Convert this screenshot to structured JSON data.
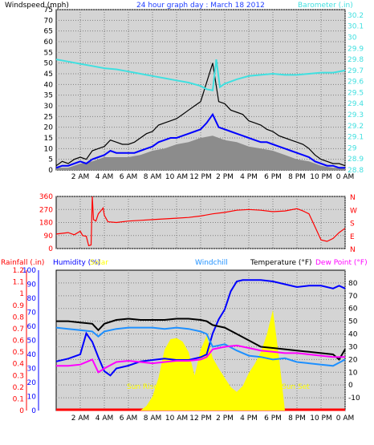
{
  "colors": {
    "background": "#ffffff",
    "plot_background": "#d4d4d4",
    "grid": "#808080",
    "windspeed_max": "#000000",
    "windspeed_range": "#8c8c8c",
    "windspeed_avg": "#0000ff",
    "barometer": "#40e0e0",
    "wind_direction": "#ff0000",
    "rainfall": "#ff0000",
    "humidity": "#0000ff",
    "solar": "#ffff00",
    "windchill": "#1e90ff",
    "temperature": "#000000",
    "dewpoint": "#ff00ff"
  },
  "chart_data": [
    {
      "type": "line",
      "title": "24 hour graph day : March 18 2012",
      "left_label": "Windspeed (mph)",
      "right_label": "Barometer (.in)",
      "x_ticks": [
        "2 AM",
        "4 AM",
        "6 AM",
        "8 AM",
        "10 AM",
        "12 PM",
        "2 PM",
        "4 PM",
        "6 PM",
        "8 PM",
        "10 PM",
        "0 AM"
      ],
      "x_range_hours": [
        0,
        24
      ],
      "y_left_ticks": [
        "0",
        "5",
        "10",
        "15",
        "20",
        "25",
        "30",
        "35",
        "40",
        "45",
        "50",
        "55",
        "60",
        "65",
        "70",
        "75"
      ],
      "y_left_range": [
        0,
        75
      ],
      "y_right_ticks": [
        "28.8",
        "28.9",
        "29",
        "29.1",
        "29.2",
        "29.3",
        "29.4",
        "29.5",
        "29.6",
        "29.7",
        "29.8",
        "29.9",
        "30",
        "30.1",
        "30.2"
      ],
      "y_right_range": [
        28.8,
        30.25
      ],
      "grid": true,
      "series": [
        {
          "key": "wind_max",
          "axis": "left",
          "x": [
            0,
            0.5,
            1,
            1.5,
            2,
            2.5,
            3,
            3.5,
            4,
            4.5,
            5,
            5.5,
            6,
            6.5,
            7,
            7.5,
            8,
            8.5,
            9,
            9.5,
            10,
            10.5,
            11,
            11.5,
            12,
            12.5,
            13,
            13.5,
            14,
            14.5,
            15,
            15.5,
            16,
            16.5,
            17,
            17.5,
            18,
            18.5,
            19,
            19.5,
            20,
            20.5,
            21,
            21.5,
            22,
            22.5,
            23,
            23.5,
            24
          ],
          "values": [
            2,
            4,
            3,
            5,
            6,
            5,
            9,
            10,
            11,
            14,
            13,
            12,
            12,
            13,
            15,
            17,
            18,
            21,
            22,
            23,
            24,
            26,
            28,
            30,
            32,
            41,
            50,
            32,
            31,
            28,
            27,
            26,
            23,
            22,
            21,
            19,
            18,
            16,
            15,
            14,
            13,
            12,
            10,
            7,
            5,
            4,
            3,
            3,
            2
          ]
        },
        {
          "key": "wind_range",
          "axis": "left",
          "x": [
            0,
            1,
            2,
            3,
            4,
            5,
            6,
            7,
            8,
            9,
            10,
            11,
            12,
            13,
            14,
            15,
            16,
            17,
            18,
            19,
            20,
            21,
            22,
            23,
            24
          ],
          "values": [
            1,
            1,
            3,
            4,
            6,
            6,
            6,
            7,
            9,
            10,
            12,
            13,
            15,
            16,
            14,
            13,
            11,
            10,
            9,
            7,
            5,
            4,
            2,
            1,
            1
          ]
        },
        {
          "key": "wind_avg",
          "axis": "left",
          "x": [
            0,
            0.5,
            1,
            1.5,
            2,
            2.5,
            3,
            3.5,
            4,
            4.5,
            5,
            5.5,
            6,
            6.5,
            7,
            7.5,
            8,
            8.5,
            9,
            9.5,
            10,
            10.5,
            11,
            11.5,
            12,
            12.5,
            13,
            13.5,
            14,
            14.5,
            15,
            15.5,
            16,
            16.5,
            17,
            17.5,
            18,
            18.5,
            19,
            19.5,
            20,
            20.5,
            21,
            21.5,
            22,
            22.5,
            23,
            23.5,
            24
          ],
          "values": [
            1,
            2,
            2,
            3,
            4,
            3,
            5,
            6,
            7,
            9,
            8,
            8,
            8,
            8,
            9,
            10,
            11,
            13,
            14,
            15,
            15,
            16,
            17,
            18,
            19,
            22,
            26,
            20,
            19,
            18,
            17,
            16,
            15,
            14,
            13,
            13,
            12,
            11,
            10,
            9,
            8,
            7,
            6,
            4,
            3,
            2,
            2,
            1,
            1
          ]
        },
        {
          "key": "barometer",
          "axis": "right",
          "x": [
            0,
            1,
            2,
            3,
            4,
            5,
            6,
            7,
            8,
            9,
            10,
            11,
            12,
            12.5,
            13,
            13.3,
            13.6,
            14,
            15,
            16,
            17,
            18,
            19,
            20,
            21,
            22,
            23,
            24
          ],
          "values": [
            29.8,
            29.78,
            29.76,
            29.74,
            29.72,
            29.71,
            29.69,
            29.67,
            29.65,
            29.63,
            29.61,
            29.59,
            29.56,
            29.53,
            29.52,
            29.8,
            29.55,
            29.58,
            29.62,
            29.65,
            29.66,
            29.67,
            29.66,
            29.66,
            29.67,
            29.68,
            29.68,
            29.7
          ]
        }
      ]
    },
    {
      "type": "line",
      "y_ticks": [
        "0",
        "90",
        "180",
        "270",
        "360"
      ],
      "y_range": [
        0,
        360
      ],
      "right_ticks": [
        "N",
        "W",
        "S",
        "E",
        "N"
      ],
      "x_range_hours": [
        0,
        24
      ],
      "grid": true,
      "series": [
        {
          "key": "wind_direction",
          "x": [
            0,
            0.5,
            1,
            1.5,
            2,
            2.2,
            2.5,
            2.7,
            2.9,
            3,
            3.1,
            3.3,
            3.5,
            3.7,
            3.9,
            4,
            4.3,
            5,
            6,
            7,
            8,
            9,
            10,
            11,
            12,
            13,
            14,
            15,
            16,
            17,
            18,
            19,
            20,
            20.5,
            21,
            21.5,
            22,
            22.5,
            23,
            23.5,
            24
          ],
          "values": [
            100,
            105,
            110,
            95,
            120,
            90,
            85,
            20,
            25,
            360,
            200,
            190,
            240,
            260,
            280,
            230,
            185,
            180,
            190,
            195,
            200,
            205,
            210,
            215,
            225,
            240,
            250,
            265,
            270,
            265,
            255,
            260,
            275,
            260,
            240,
            150,
            60,
            50,
            70,
            110,
            140
          ]
        }
      ]
    },
    {
      "type": "line",
      "left_label": "Rainfall (.in)",
      "humidity_label": "Humidity (%)",
      "solar_label": "Solar",
      "windchill_label": "Windchill",
      "temperature_label": "Temperature (°F)",
      "dewpoint_label": "Dew Point (°F)",
      "rain_ticks": [
        "0",
        "0.1",
        "0.2",
        "0.3",
        "0.4",
        "0.5",
        "0.6",
        "0.7",
        "0.8",
        "0.9",
        "1",
        "1.1",
        "1.2"
      ],
      "rain_range": [
        0,
        1.2
      ],
      "humidity_ticks": [
        "0",
        "10",
        "20",
        "30",
        "40",
        "50",
        "60",
        "70",
        "80",
        "90",
        "100"
      ],
      "humidity_range": [
        0,
        100
      ],
      "temp_ticks": [
        "-10",
        "0",
        "10",
        "20",
        "30",
        "40",
        "50",
        "60",
        "70",
        "80"
      ],
      "temp_range": [
        -20,
        90
      ],
      "x_ticks": [
        "2 AM",
        "4 AM",
        "6 AM",
        "8 AM",
        "10 AM",
        "12 PM",
        "2 PM",
        "4 PM",
        "6 PM",
        "8 PM",
        "10 PM",
        "0 AM"
      ],
      "x_range_hours": [
        0,
        24
      ],
      "annotations": [
        "Sun Rise",
        "Sun Set"
      ],
      "grid": true,
      "series": [
        {
          "key": "rainfall",
          "x": [
            0,
            24
          ],
          "values": [
            0,
            0
          ]
        },
        {
          "key": "solar",
          "x": [
            7,
            7.5,
            8,
            8.5,
            9,
            9.5,
            10,
            10.5,
            11,
            11.5,
            12,
            12.5,
            13,
            13.5,
            14,
            14.5,
            15,
            15.5,
            16,
            16.5,
            17,
            17.5,
            18,
            18.5,
            19
          ],
          "values": [
            0,
            40,
            120,
            280,
            520,
            610,
            620,
            590,
            500,
            300,
            520,
            640,
            450,
            360,
            280,
            200,
            160,
            210,
            320,
            400,
            500,
            650,
            860,
            460,
            0
          ]
        },
        {
          "key": "humidity",
          "x": [
            0,
            1,
            2,
            2.5,
            3,
            3.5,
            4,
            4.5,
            5,
            6,
            7,
            8,
            9,
            10,
            11,
            12,
            12.5,
            13,
            13.5,
            14,
            14.5,
            15,
            15.5,
            16,
            17,
            18,
            19,
            20,
            21,
            22,
            23,
            23.5,
            24
          ],
          "values": [
            35,
            37,
            40,
            55,
            49,
            38,
            28,
            25,
            30,
            32,
            35,
            36,
            37,
            36,
            36,
            38,
            40,
            55,
            65,
            72,
            85,
            92,
            93,
            93,
            93,
            92,
            90,
            88,
            89,
            89,
            87,
            89,
            87
          ]
        },
        {
          "key": "windchill",
          "x": [
            0,
            1,
            2,
            3,
            3.5,
            4,
            5,
            6,
            7,
            8,
            9,
            10,
            11,
            12,
            12.5,
            13,
            14,
            15,
            16,
            17,
            18,
            19,
            20,
            21,
            22,
            23,
            24
          ],
          "values": [
            45,
            44,
            43,
            42,
            38,
            42,
            44,
            45,
            45,
            45,
            44,
            45,
            44,
            42,
            40,
            30,
            32,
            27,
            23,
            22,
            20,
            21,
            18,
            17,
            16,
            15,
            20
          ]
        },
        {
          "key": "temperature",
          "x": [
            0,
            1,
            2,
            3,
            3.5,
            4,
            5,
            6,
            7,
            8,
            9,
            10,
            11,
            12,
            12.5,
            13,
            14,
            15,
            16,
            17,
            18,
            19,
            20,
            21,
            22,
            23,
            23.5,
            24
          ],
          "values": [
            50,
            50,
            49,
            48,
            43,
            48,
            51,
            52,
            51,
            51,
            51,
            52,
            52,
            51,
            50,
            47,
            45,
            40,
            35,
            30,
            29,
            28,
            27,
            26,
            25,
            24,
            20,
            28
          ]
        },
        {
          "key": "dewpoint",
          "x": [
            0,
            1,
            2,
            3,
            3.5,
            4,
            5,
            6,
            7,
            8,
            9,
            10,
            11,
            12,
            12.5,
            13,
            14,
            15,
            16,
            17,
            18,
            19,
            20,
            21,
            22,
            23,
            24
          ],
          "values": [
            15,
            15,
            16,
            20,
            10,
            13,
            18,
            19,
            18,
            17,
            18,
            19,
            19,
            20,
            22,
            28,
            30,
            31,
            29,
            27,
            26,
            25,
            25,
            24,
            23,
            22,
            22
          ]
        }
      ]
    }
  ]
}
